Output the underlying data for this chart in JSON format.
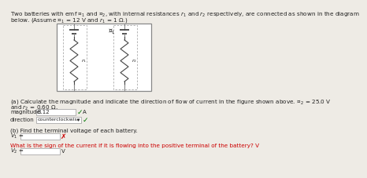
{
  "bg_color": "#eeebe5",
  "title_line1": "Two batteries with emf $\\mathcal{E}_1$ and $\\mathcal{E}_2$, with internal resistances $r_1$ and $r_2$ respectively, are connected as shown in the diagram",
  "title_line2": "below. (Assume $\\mathcal{E}_1$ = 12 V and $r_1$ = 1 Ω.)",
  "part_a_line1": "(a) Calculate the magnitude and indicate the direction of flow of current in the figure shown above. $\\mathcal{E}_2$ = 25.0 V",
  "part_a_line2": "and $r_2$ = 0.60 Ω.",
  "magnitude_label": "magnitude",
  "magnitude_value": "8.12",
  "magnitude_unit": "A",
  "direction_label": "direction",
  "direction_value": "counterclockwise",
  "part_b_line": "(b) Find the terminal voltage of each battery.",
  "v1_label": "$V_1$ =",
  "v2_label": "$V_2$ =",
  "v2_unit": "V",
  "hint_text": "What is the sign of the current if it is flowing into the positive terminal of the battery? V",
  "hint_color": "#cc0000",
  "check_color": "#007700",
  "cross_color": "#cc0000",
  "text_color": "#222222",
  "input_box_color": "#ffffff",
  "input_border_color": "#999999",
  "dashed_box_color": "#aaaaaa",
  "battery_color": "#444444",
  "wire_color": "#888888",
  "circuit_bg": "#ffffff",
  "circuit_border": "#888888"
}
